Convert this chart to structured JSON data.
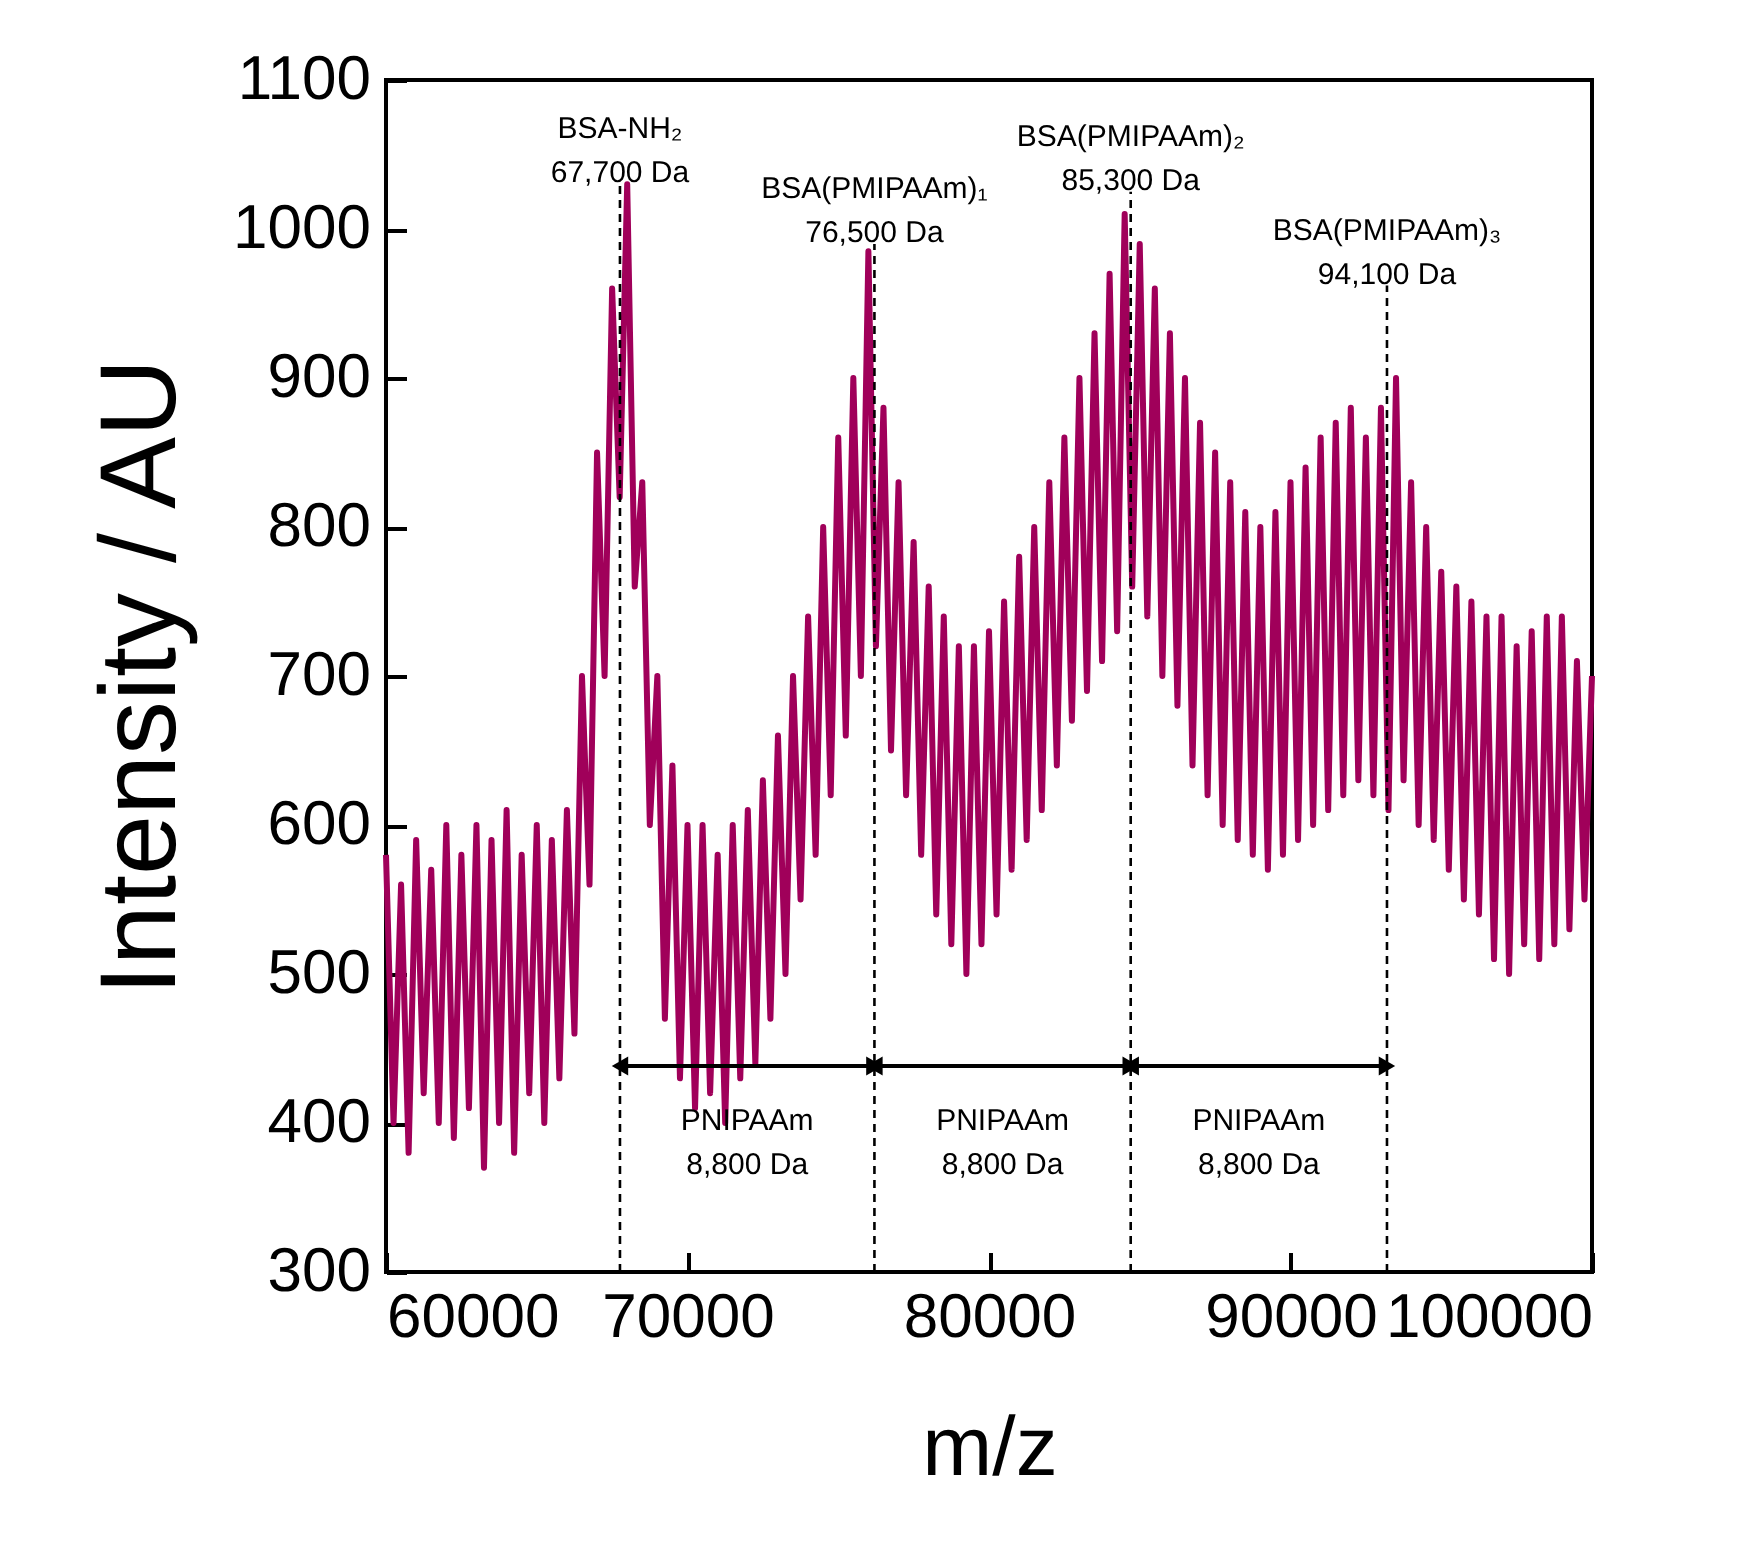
{
  "chart_data": {
    "type": "line",
    "xlabel": "m/z",
    "ylabel": "Intensity / AU",
    "x": [
      60000,
      60250,
      60500,
      60750,
      61000,
      61250,
      61500,
      61750,
      62000,
      62250,
      62500,
      62750,
      63000,
      63250,
      63500,
      63750,
      64000,
      64250,
      64500,
      64750,
      65000,
      65250,
      65500,
      65750,
      66000,
      66250,
      66500,
      66750,
      67000,
      67250,
      67500,
      67750,
      68000,
      68250,
      68500,
      68750,
      69000,
      69250,
      69500,
      69750,
      70000,
      70250,
      70500,
      70750,
      71000,
      71250,
      71500,
      71750,
      72000,
      72250,
      72500,
      72750,
      73000,
      73250,
      73500,
      73750,
      74000,
      74250,
      74500,
      74750,
      75000,
      75250,
      75500,
      75750,
      76000,
      76250,
      76500,
      76750,
      77000,
      77250,
      77500,
      77750,
      78000,
      78250,
      78500,
      78750,
      79000,
      79250,
      79500,
      79750,
      80000,
      80250,
      80500,
      80750,
      81000,
      81250,
      81500,
      81750,
      82000,
      82250,
      82500,
      82750,
      83000,
      83250,
      83500,
      83750,
      84000,
      84250,
      84500,
      84750,
      85000,
      85250,
      85500,
      85750,
      86000,
      86250,
      86500,
      86750,
      87000,
      87250,
      87500,
      87750,
      88000,
      88250,
      88500,
      88750,
      89000,
      89250,
      89500,
      89750,
      90000,
      90250,
      90500,
      90750,
      91000,
      91250,
      91500,
      91750,
      92000,
      92250,
      92500,
      92750,
      93000,
      93250,
      93500,
      93750,
      94000,
      94250,
      94500,
      94750,
      95000,
      95250,
      95500,
      95750,
      96000,
      96250,
      96500,
      96750,
      97000,
      97250,
      97500,
      97750,
      98000,
      98250,
      98500,
      98750,
      99000,
      99250,
      99500,
      99750,
      100000
    ],
    "series": [
      {
        "color": "#a0005a",
        "values": [
          580,
          400,
          560,
          380,
          590,
          420,
          570,
          400,
          600,
          390,
          580,
          410,
          600,
          370,
          590,
          400,
          610,
          380,
          580,
          420,
          600,
          400,
          590,
          430,
          610,
          460,
          700,
          560,
          850,
          700,
          960,
          820,
          1030,
          760,
          830,
          600,
          700,
          470,
          640,
          430,
          600,
          410,
          600,
          420,
          580,
          400,
          600,
          430,
          610,
          440,
          630,
          470,
          660,
          500,
          700,
          550,
          740,
          580,
          800,
          620,
          860,
          660,
          900,
          700,
          985,
          720,
          880,
          650,
          830,
          620,
          790,
          580,
          760,
          540,
          740,
          520,
          720,
          500,
          720,
          520,
          730,
          540,
          750,
          570,
          780,
          590,
          800,
          610,
          830,
          640,
          860,
          670,
          900,
          690,
          930,
          710,
          970,
          730,
          1010,
          760,
          990,
          740,
          960,
          700,
          930,
          680,
          900,
          640,
          870,
          620,
          850,
          600,
          830,
          590,
          810,
          580,
          800,
          570,
          810,
          580,
          830,
          590,
          840,
          600,
          860,
          610,
          870,
          620,
          880,
          630,
          860,
          620,
          880,
          610,
          900,
          630,
          830,
          600,
          800,
          590,
          770,
          570,
          760,
          550,
          750,
          540,
          740,
          510,
          740,
          500,
          720,
          520,
          730,
          510,
          740,
          520,
          740,
          530,
          710,
          550,
          700
        ]
      }
    ],
    "xlim": [
      60000,
      100000
    ],
    "xticks": [
      60000,
      70000,
      80000,
      90000,
      100000
    ],
    "ylim": [
      300,
      1100
    ],
    "yticks": [
      300,
      400,
      500,
      600,
      700,
      800,
      900,
      1000,
      1100
    ],
    "grid": false,
    "ref_lines": [
      {
        "axis": "x",
        "value": 67760,
        "line_style": "dashed",
        "color": "#000000"
      },
      {
        "axis": "x",
        "value": 76200,
        "line_style": "dashed",
        "color": "#000000"
      },
      {
        "axis": "x",
        "value": 84700,
        "line_style": "dashed",
        "color": "#000000"
      },
      {
        "axis": "x",
        "value": 93200,
        "line_style": "dashed",
        "color": "#000000"
      }
    ],
    "annotations": [
      {
        "text": "BSA-NH₂\n67,700 Da",
        "x": 67760,
        "y": 1030
      },
      {
        "text": "BSA(PMIPAAm)₁\n76,500 Da",
        "x": 76200,
        "y": 990
      },
      {
        "text": "BSA(PMIPAAm)₂\n85,300 Da",
        "x": 84700,
        "y": 1025
      },
      {
        "text": "BSA(PMIPAAm)₃\n94,100 Da",
        "x": 93200,
        "y": 962
      },
      "PNIPAAm\n8,800 Da",
      "PNIPAAm\n8,800 Da",
      "PNIPAAm\n8,800 Da"
    ]
  }
}
